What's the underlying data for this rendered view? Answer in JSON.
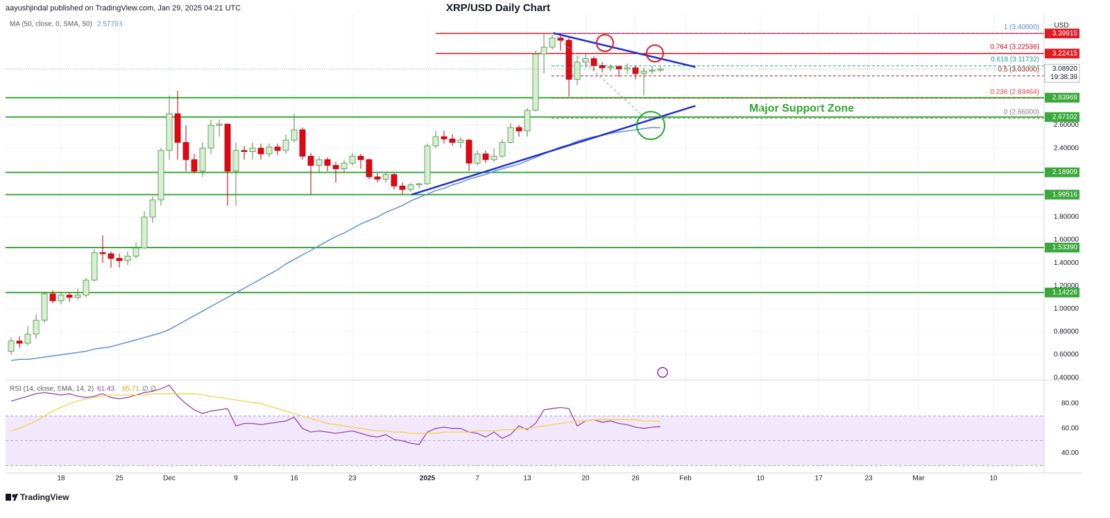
{
  "header": {
    "byline": "aayushjindal published on TradingView.com, Jan 29, 2025 04:21 UTC",
    "title": "XRP/USD Daily Chart",
    "currency": "USD",
    "brand": "TradingView"
  },
  "chart_data": {
    "type": "candlestick",
    "legend_label": "MA (50, close, 0, SMA, 50)",
    "annotation": "Major Support Zone",
    "xlim": [
      -0.67,
      124.08
    ],
    "xticks": [
      {
        "value": 6,
        "label": "18"
      },
      {
        "value": 13,
        "label": "25"
      },
      {
        "value": 19,
        "label": "Dec"
      },
      {
        "value": 27,
        "label": "9"
      },
      {
        "value": 34,
        "label": "16"
      },
      {
        "value": 41,
        "label": "23"
      },
      {
        "value": 50,
        "label": "2025"
      },
      {
        "value": 56,
        "label": "7"
      },
      {
        "value": 62,
        "label": "13"
      },
      {
        "value": 69,
        "label": "20"
      },
      {
        "value": 75,
        "label": "26"
      },
      {
        "value": 81,
        "label": "Feb"
      },
      {
        "value": 90,
        "label": "10"
      },
      {
        "value": 97,
        "label": "17"
      },
      {
        "value": 103,
        "label": "23"
      },
      {
        "value": 109,
        "label": "Mar"
      },
      {
        "value": 118,
        "label": "10"
      }
    ],
    "ylim": [
      0.38,
      3.57
    ],
    "yticks": [
      {
        "value": 2.6,
        "label": "2.60000"
      },
      {
        "value": 2.4,
        "label": "2.40000"
      },
      {
        "value": 1.8,
        "label": "1.80000"
      },
      {
        "value": 1.6,
        "label": "1.60000"
      },
      {
        "value": 1.4,
        "label": "1.40000"
      },
      {
        "value": 1.2,
        "label": "1.20000"
      },
      {
        "value": 1.0,
        "label": "1.00000"
      },
      {
        "value": 0.8,
        "label": "0.80000"
      },
      {
        "value": 0.6,
        "label": "0.60000"
      },
      {
        "value": 0.4,
        "label": "0.40000"
      }
    ],
    "grid": true,
    "up_color": "#d7efd2",
    "up_border": "#4c8c3f",
    "down_color": "#e30613",
    "down_border": "#b0000a",
    "open": [
      0.63,
      0.72,
      0.7,
      0.78,
      0.9,
      1.13,
      1.07,
      1.12,
      1.1,
      1.12,
      1.25,
      1.49,
      1.48,
      1.44,
      1.42,
      1.46,
      1.53,
      1.8,
      1.95,
      2.38,
      2.7,
      2.45,
      2.3,
      2.2,
      2.4,
      2.6,
      2.61,
      2.2,
      2.38,
      2.37,
      2.4,
      2.35,
      2.41,
      2.38,
      2.47,
      2.56,
      2.33,
      2.25,
      2.3,
      2.25,
      2.22,
      2.27,
      2.33,
      2.3,
      2.15,
      2.13,
      2.17,
      2.07,
      2.04,
      2.08,
      2.09,
      2.42,
      2.5,
      2.48,
      2.45,
      2.47,
      2.27,
      2.35,
      2.3,
      2.33,
      2.45,
      2.58,
      2.55,
      2.73,
      3.22,
      3.28,
      3.36,
      3.34,
      3.0,
      3.15,
      3.18,
      3.12,
      3.1,
      3.11,
      3.09,
      3.1,
      3.05,
      3.07,
      3.08
    ],
    "high": [
      0.75,
      0.76,
      0.85,
      0.95,
      1.15,
      1.16,
      1.15,
      1.14,
      1.18,
      1.27,
      1.52,
      1.64,
      1.5,
      1.48,
      1.5,
      1.58,
      1.85,
      1.98,
      2.4,
      2.86,
      2.9,
      2.6,
      2.35,
      2.45,
      2.65,
      2.65,
      2.61,
      2.45,
      2.42,
      2.45,
      2.44,
      2.44,
      2.44,
      2.52,
      2.7,
      2.58,
      2.36,
      2.33,
      2.32,
      2.28,
      2.3,
      2.36,
      2.35,
      2.31,
      2.18,
      2.19,
      2.18,
      2.1,
      2.1,
      2.1,
      2.44,
      2.55,
      2.55,
      2.52,
      2.5,
      2.48,
      2.38,
      2.38,
      2.4,
      2.48,
      2.62,
      2.6,
      2.75,
      3.25,
      3.4,
      3.39,
      3.38,
      3.36,
      3.2,
      3.22,
      3.2,
      3.15,
      3.13,
      3.12,
      3.14,
      3.12,
      3.1,
      3.12,
      3.11
    ],
    "low": [
      0.6,
      0.66,
      0.68,
      0.74,
      0.88,
      1.05,
      1.04,
      1.06,
      1.08,
      1.1,
      1.24,
      1.4,
      1.36,
      1.36,
      1.38,
      1.44,
      1.52,
      1.75,
      1.9,
      2.3,
      2.3,
      2.2,
      2.18,
      2.15,
      2.35,
      2.5,
      1.9,
      1.9,
      2.3,
      2.3,
      2.3,
      2.32,
      2.34,
      2.35,
      2.45,
      2.3,
      2.0,
      2.18,
      2.2,
      2.1,
      2.18,
      2.25,
      2.22,
      2.13,
      2.1,
      2.1,
      2.04,
      2.0,
      2.02,
      2.05,
      2.08,
      2.4,
      2.44,
      2.42,
      2.4,
      2.2,
      2.25,
      2.27,
      2.28,
      2.32,
      2.44,
      2.5,
      2.5,
      2.72,
      3.05,
      3.26,
      3.25,
      2.85,
      2.95,
      3.1,
      3.08,
      3.06,
      3.07,
      3.02,
      3.05,
      3.0,
      2.86,
      3.04,
      3.06
    ],
    "close": [
      0.72,
      0.7,
      0.78,
      0.9,
      1.13,
      1.07,
      1.12,
      1.1,
      1.12,
      1.25,
      1.49,
      1.48,
      1.44,
      1.42,
      1.46,
      1.53,
      1.8,
      1.95,
      2.38,
      2.7,
      2.45,
      2.3,
      2.2,
      2.4,
      2.6,
      2.61,
      2.2,
      2.38,
      2.37,
      2.4,
      2.35,
      2.41,
      2.38,
      2.47,
      2.56,
      2.33,
      2.25,
      2.3,
      2.25,
      2.22,
      2.27,
      2.33,
      2.3,
      2.15,
      2.13,
      2.17,
      2.07,
      2.04,
      2.08,
      2.09,
      2.42,
      2.5,
      2.48,
      2.45,
      2.47,
      2.27,
      2.35,
      2.3,
      2.33,
      2.45,
      2.58,
      2.55,
      2.73,
      3.22,
      3.28,
      3.36,
      3.34,
      3.0,
      3.15,
      3.18,
      3.12,
      3.1,
      3.11,
      3.09,
      3.1,
      3.05,
      3.07,
      3.08,
      3.0892
    ],
    "last_label": "3.08920",
    "countdown": "19:38:39",
    "ma": {
      "color": "#5b8fd8",
      "values": [
        0.55,
        0.56,
        0.56,
        0.57,
        0.58,
        0.59,
        0.6,
        0.61,
        0.62,
        0.63,
        0.65,
        0.66,
        0.67,
        0.69,
        0.71,
        0.73,
        0.75,
        0.77,
        0.79,
        0.82,
        0.86,
        0.9,
        0.94,
        0.98,
        1.02,
        1.06,
        1.1,
        1.14,
        1.18,
        1.22,
        1.26,
        1.3,
        1.34,
        1.39,
        1.43,
        1.47,
        1.51,
        1.55,
        1.59,
        1.63,
        1.66,
        1.7,
        1.74,
        1.77,
        1.8,
        1.84,
        1.87,
        1.9,
        1.94,
        1.97,
        2.0,
        2.03,
        2.05,
        2.08,
        2.1,
        2.13,
        2.15,
        2.17,
        2.2,
        2.22,
        2.24,
        2.26,
        2.29,
        2.32,
        2.35,
        2.38,
        2.41,
        2.43,
        2.46,
        2.48,
        2.5,
        2.51,
        2.53,
        2.54,
        2.55,
        2.56,
        2.57,
        2.58,
        2.57703
      ]
    },
    "levels": [
      {
        "value": 2.83969,
        "label": "2.83969"
      },
      {
        "value": 2.67102,
        "label": "2.67102"
      },
      {
        "value": 2.18909,
        "label": "2.18909"
      },
      {
        "value": 1.99516,
        "label": "1.99516"
      },
      {
        "value": 1.5339,
        "label": "1.53390"
      },
      {
        "value": 1.14226,
        "label": "1.14226"
      }
    ],
    "level_color": "#3aa83a",
    "resistances": [
      {
        "value": 3.39915,
        "label": "3.39915"
      },
      {
        "value": 3.22415,
        "label": "3.22415"
      }
    ],
    "resistance_color": "#e01b24",
    "resistance_from": 51,
    "fib_from": 64.9,
    "fib": [
      {
        "value": 3.4,
        "label": "1 (3.40000)",
        "color": "#5b7fd8"
      },
      {
        "value": 3.22536,
        "label": "0.764 (3.22536)",
        "color": "#d0021b"
      },
      {
        "value": 3.11732,
        "label": "0.618 (3.11732)",
        "color": "#1e9e8a"
      },
      {
        "value": 3.03,
        "label": "0.5 (3.03000)",
        "color": "#8b1a1a"
      },
      {
        "value": 2.83464,
        "label": "0.236 (2.83464)",
        "color": "#e04040"
      },
      {
        "value": 2.66,
        "label": "0 (2.66000)",
        "color": "#808080"
      }
    ],
    "trendlines": [
      {
        "color": "#1f2fd0",
        "dashed": false,
        "points": [
          [
            48.1,
            1.995
          ],
          [
            82.2,
            2.769
          ]
        ]
      },
      {
        "color": "#1f2fd0",
        "dashed": false,
        "points": [
          [
            65.1,
            3.403
          ],
          [
            82.2,
            3.107
          ]
        ]
      },
      {
        "color": "#9a9a9a",
        "dashed": true,
        "points": [
          [
            65.1,
            3.4
          ],
          [
            76.2,
            2.66
          ]
        ]
      }
    ],
    "rsi": {
      "type": "line",
      "label": "RSI (14, close, SMA, 14, 2)",
      "extra": "∅ ∅",
      "ylim": [
        24,
        98
      ],
      "yticks": [
        {
          "value": 80,
          "label": "80.00"
        },
        {
          "value": 60,
          "label": "60.00"
        },
        {
          "value": 40,
          "label": "40.00"
        }
      ],
      "bands": [
        70,
        50,
        30
      ],
      "band_color": "#f3e8fb",
      "series": [
        {
          "name": "RSI",
          "color": "#8e44ad",
          "values": [
            82,
            84,
            86,
            88,
            89,
            88,
            87,
            88,
            86,
            85,
            86,
            88,
            85,
            84,
            85,
            87,
            89,
            90,
            92,
            95,
            86,
            80,
            75,
            72,
            74,
            75,
            76,
            62,
            64,
            64,
            63,
            64,
            65,
            66,
            69,
            60,
            57,
            58,
            57,
            56,
            57,
            58,
            56,
            54,
            53,
            55,
            51,
            50,
            48,
            47,
            57,
            60,
            61,
            60,
            60,
            57,
            56,
            53,
            57,
            52,
            55,
            62,
            59,
            64,
            75,
            76,
            77,
            76,
            62,
            66,
            67,
            65,
            66,
            64,
            63,
            61,
            60,
            61,
            61.43
          ]
        },
        {
          "name": "MA",
          "color": "#f2d046",
          "values": [
            58,
            60,
            63,
            66,
            70,
            74,
            77,
            80,
            82,
            84,
            85,
            86,
            87,
            87,
            87,
            87,
            87,
            88,
            88,
            88,
            88,
            88,
            88,
            87,
            86,
            85,
            84,
            83,
            82,
            81,
            80,
            78,
            76,
            74,
            72,
            70,
            68,
            66,
            64,
            63,
            62,
            61,
            60,
            59,
            58,
            58,
            57,
            57,
            56,
            56,
            56,
            56,
            57,
            57,
            57,
            57,
            58,
            58,
            58,
            59,
            59,
            60,
            60,
            61,
            62,
            63,
            64,
            65,
            66,
            66,
            67,
            67,
            67,
            67,
            67,
            67,
            66,
            66,
            65.71
          ]
        }
      ]
    }
  }
}
